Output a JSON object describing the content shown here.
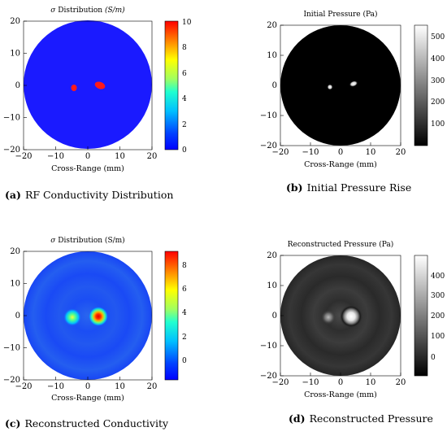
{
  "panels": [
    {
      "id": "a",
      "title_prefix": "σ",
      "title_main": " Distribution ",
      "title_units": "(S/m)",
      "x_label": "Cross-Range (mm)",
      "x_ticks": [
        "−20",
        "−10",
        "0",
        "10",
        "20"
      ],
      "y_ticks": [
        "20",
        "10",
        "0",
        "−10",
        "−20"
      ],
      "colorbar_ticks": [
        "10",
        "8",
        "6",
        "4",
        "2",
        "0"
      ],
      "colormap": "jet",
      "caption_label": "(a)",
      "caption_text": "RF Conductivity Distribution"
    },
    {
      "id": "b",
      "title": "Initial Pressure (Pa)",
      "x_label": "Cross-Range (mm)",
      "x_ticks": [
        "−20",
        "−10",
        "0",
        "10",
        "20"
      ],
      "y_ticks": [
        "20",
        "10",
        "0",
        "−10",
        "−20"
      ],
      "colorbar_ticks": [
        "500",
        "400",
        "300",
        "200",
        "100"
      ],
      "colormap": "gray",
      "caption_label": "(b)",
      "caption_text": "Initial Pressure Rise"
    },
    {
      "id": "c",
      "title_prefix": "σ",
      "title_main": " Distribution (S/m)",
      "x_label": "Cross-Range (mm)",
      "x_ticks": [
        "−20",
        "−10",
        "0",
        "10",
        "20"
      ],
      "y_ticks": [
        "20",
        "10",
        "0",
        "−10",
        "−20"
      ],
      "colorbar_ticks": [
        "8",
        "6",
        "4",
        "2",
        "0"
      ],
      "colormap": "jet",
      "caption_label": "(c)",
      "caption_text": "Reconstructed Conductivity"
    },
    {
      "id": "d",
      "title": "Reconstructed Pressure (Pa)",
      "x_label": "Cross-Range (mm)",
      "x_ticks": [
        "−20",
        "−10",
        "0",
        "10",
        "20"
      ],
      "y_ticks": [
        "20",
        "10",
        "0",
        "−10",
        "−20"
      ],
      "colorbar_ticks": [
        "400",
        "300",
        "200",
        "100",
        "0"
      ],
      "colormap": "gray",
      "caption_label": "(d)",
      "caption_text": "Reconstructed Pressure"
    }
  ],
  "colors": {
    "jet_blue": "#1a1aff",
    "jet_red": "#ff1a1a",
    "black": "#000000",
    "white": "#ffffff"
  }
}
